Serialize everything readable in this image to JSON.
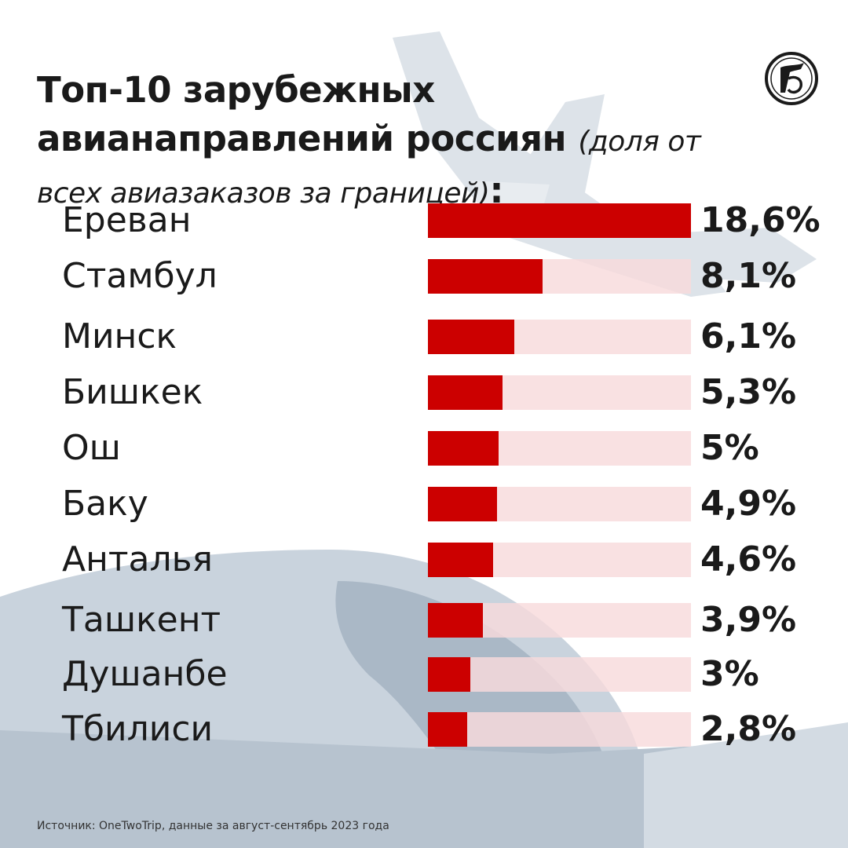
{
  "header": {
    "title_main": "Топ-10 зарубежных авианаправлений россиян",
    "title_sub": "(доля от всех авиазаказов за границей)",
    "title_colon": ":"
  },
  "source": "Источник: OneTwoTrip, данные за август-сентябрь 2023 года",
  "colors": {
    "bar": "#cc0000",
    "track": "#f8dadc",
    "text": "#1a1a1a"
  },
  "icons": [
    "newspaper-logo-icon",
    "airplane-image",
    "train-image"
  ],
  "chart_data": {
    "type": "bar",
    "orientation": "horizontal",
    "categories": [
      "Ереван",
      "Стамбул",
      "Минск",
      "Бишкек",
      "Ош",
      "Баку",
      "Анталья",
      "Ташкент",
      "Душанбе",
      "Тбилиси"
    ],
    "values": [
      18.6,
      8.1,
      6.1,
      5.3,
      5,
      4.9,
      4.6,
      3.9,
      3,
      2.8
    ],
    "value_labels": [
      "18,6%",
      "8,1%",
      "6,1%",
      "5,3%",
      "5%",
      "4,9%",
      "4,6%",
      "3,9%",
      "3%",
      "2,8%"
    ],
    "xlim": [
      0,
      18.6
    ],
    "grid": false,
    "legend": "none"
  }
}
